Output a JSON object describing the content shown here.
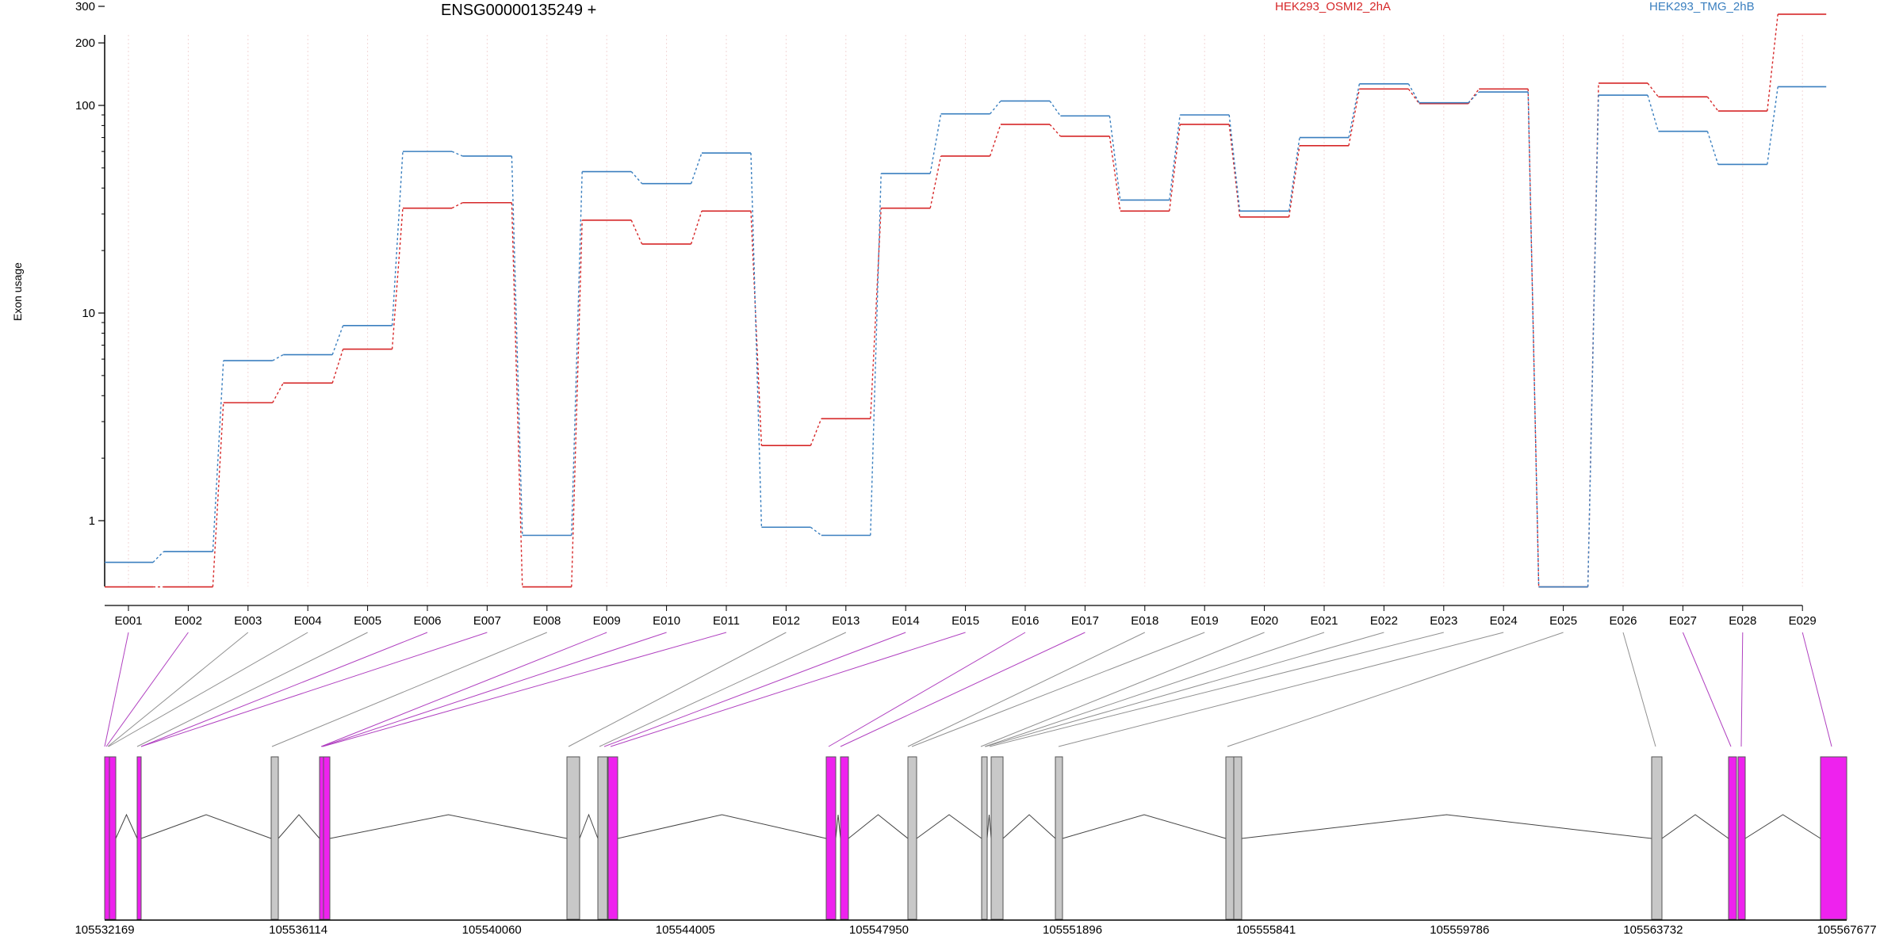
{
  "chart_data": {
    "type": "line",
    "title": "ENSG00000135249 +",
    "xlabel": "",
    "ylabel": "Exon usage",
    "yscale": "log",
    "ylim": [
      0.4,
      380
    ],
    "yticks": [
      "1",
      "10",
      "100",
      "200",
      "300"
    ],
    "ytick_values": [
      1,
      10,
      100,
      200,
      300
    ],
    "grid": "vertical dotted lines at exons",
    "legend": "top",
    "categories": [
      "E001",
      "E002",
      "E003",
      "E004",
      "E005",
      "E006",
      "E007",
      "E008",
      "E009",
      "E010",
      "E011",
      "E012",
      "E013",
      "E014",
      "E015",
      "E016",
      "E017",
      "E018",
      "E019",
      "E020",
      "E021",
      "E022",
      "E023",
      "E024",
      "E025",
      "E026",
      "E027",
      "E028",
      "E029"
    ],
    "series": [
      {
        "name": "HEK293_OSMI2_2hA",
        "color": "#d62728",
        "values": [
          0.48,
          0.48,
          3.7,
          4.6,
          6.7,
          32,
          34,
          0.48,
          28,
          21.5,
          31,
          2.3,
          3.1,
          32,
          57,
          81,
          71,
          31,
          81,
          29,
          64,
          120,
          102,
          120,
          0.48,
          128,
          110,
          94,
          275
        ]
      },
      {
        "name": "HEK293_TMG_2hB",
        "color": "#3a7fbf",
        "values": [
          0.63,
          0.71,
          5.9,
          6.3,
          8.7,
          60,
          57,
          0.85,
          48,
          42,
          59,
          0.93,
          0.85,
          47,
          91,
          105,
          89,
          35,
          90,
          31,
          70,
          127,
          103,
          116,
          0.48,
          112,
          75,
          52,
          123
        ]
      }
    ],
    "gene_model": {
      "coordinate_ticks": [
        "105532169",
        "105536114",
        "105540060",
        "105544005",
        "105547950",
        "105551896",
        "105555841",
        "105559786",
        "105563732",
        "105567677"
      ],
      "highlighted_exons": [
        "E001",
        "E002",
        "E006",
        "E007",
        "E009",
        "E010",
        "E011",
        "E014",
        "E015",
        "E016",
        "E017",
        "E027",
        "E028",
        "E029"
      ]
    },
    "colors": {
      "highlight": "#ee22ee",
      "neutral_exon": "#c8c8c8",
      "connector": "#909090",
      "highlight_connector": "#b040c0"
    }
  }
}
